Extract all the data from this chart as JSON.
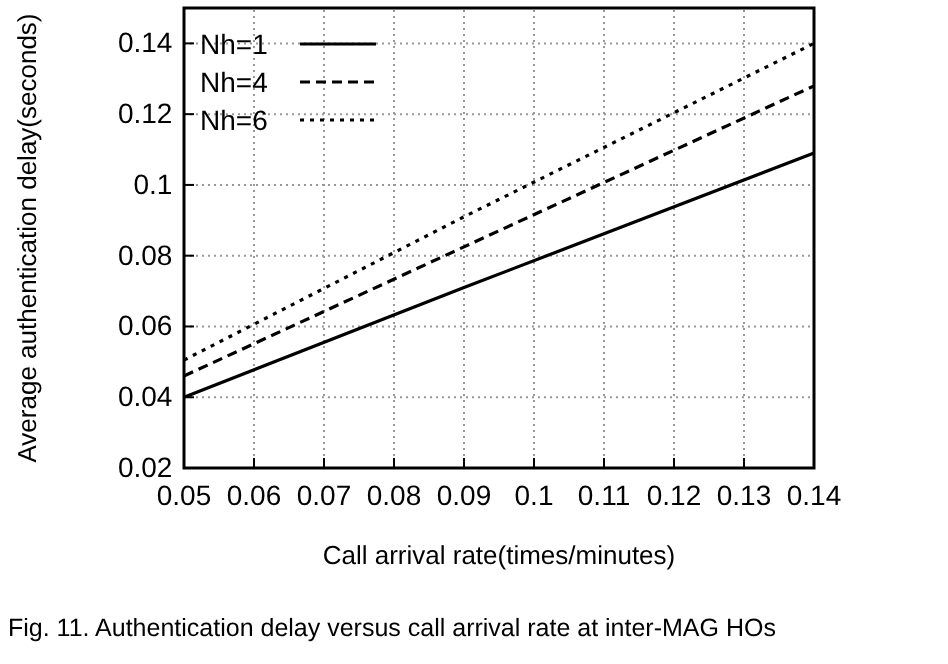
{
  "chart_data": {
    "type": "line",
    "xlabel": "Call arrival rate(times/minutes)",
    "ylabel": "Average authentication delay(seconds)",
    "annotations": [
      "Fig. 11. Authentication delay versus call arrival rate at inter-MAG HOs"
    ],
    "x": [
      0.05,
      0.09,
      0.14
    ],
    "series": [
      {
        "name": "Nh=1",
        "color": "#000000",
        "values": [
          0.04,
          0.071,
          0.109
        ],
        "line_style": "solid"
      },
      {
        "name": "Nh=4",
        "color": "#000000",
        "values": [
          0.046,
          0.0825,
          0.128
        ],
        "line_style": "dashed"
      },
      {
        "name": "Nh=6",
        "color": "#000000",
        "values": [
          0.0505,
          0.091,
          0.14
        ],
        "line_style": "dotted"
      }
    ],
    "xlim": [
      0.05,
      0.14
    ],
    "xticks": [
      0.05,
      0.06,
      0.07,
      0.08,
      0.09,
      0.1,
      0.11,
      0.12,
      0.13,
      0.14
    ],
    "ylim": [
      0.02,
      0.15
    ],
    "yticks": [
      0.02,
      0.04,
      0.06,
      0.08,
      0.1,
      0.12,
      0.14
    ],
    "grid": true,
    "legend": "top left",
    "marker": "none"
  }
}
